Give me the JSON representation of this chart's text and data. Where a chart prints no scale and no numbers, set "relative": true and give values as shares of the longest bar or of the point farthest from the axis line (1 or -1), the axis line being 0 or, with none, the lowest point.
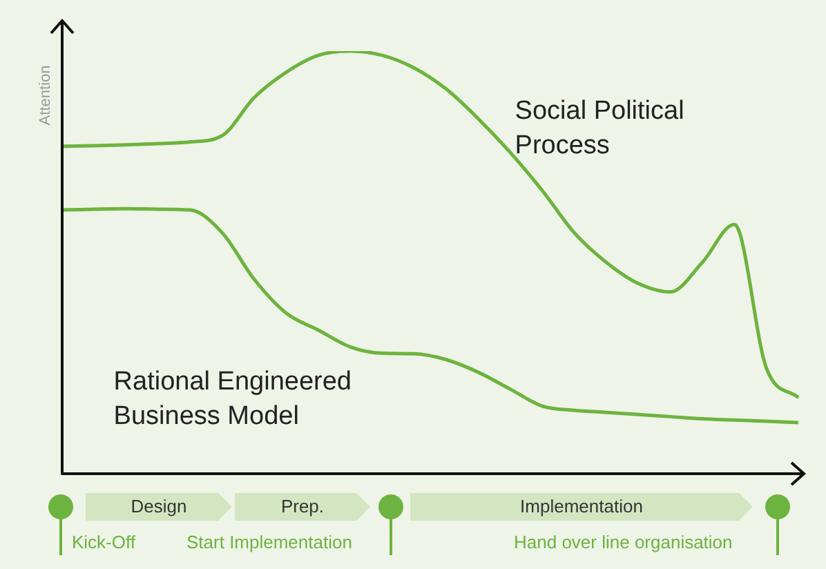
{
  "chart_data": {
    "type": "line",
    "ylabel": "Attention",
    "relative": true,
    "legend": false,
    "marker": "none",
    "categories": [
      null,
      null,
      null,
      null,
      null,
      null,
      null,
      null,
      null,
      null,
      null,
      null,
      null,
      null,
      null,
      null,
      null,
      null,
      null,
      null,
      null,
      null,
      null,
      null
    ],
    "series": [
      {
        "name": "Social Political Process",
        "color": "#6db33f",
        "values": [
          0.775,
          0.776,
          0.778,
          0.781,
          0.785,
          0.8,
          0.89,
          0.95,
          0.99,
          1,
          0.99,
          0.96,
          0.91,
          0.84,
          0.76,
          0.67,
          0.57,
          0.5,
          0.45,
          0.43,
          0.5,
          0.59,
          0.25,
          0.18
        ]
      },
      {
        "name": "Rational Engineered Business Model",
        "color": "#6db33f",
        "values": [
          0.624,
          0.626,
          0.627,
          0.626,
          0.624,
          0.57,
          0.46,
          0.38,
          0.34,
          0.3,
          0.285,
          0.284,
          0.27,
          0.24,
          0.2,
          0.16,
          0.15,
          0.145,
          0.14,
          0.135,
          0.13,
          0.127,
          0.124,
          0.121
        ]
      }
    ],
    "annotations": [
      "Design",
      "Prep.",
      "Implementation",
      "Kick-Off",
      "Start Implementation",
      "Hand over line organisation"
    ]
  }
}
